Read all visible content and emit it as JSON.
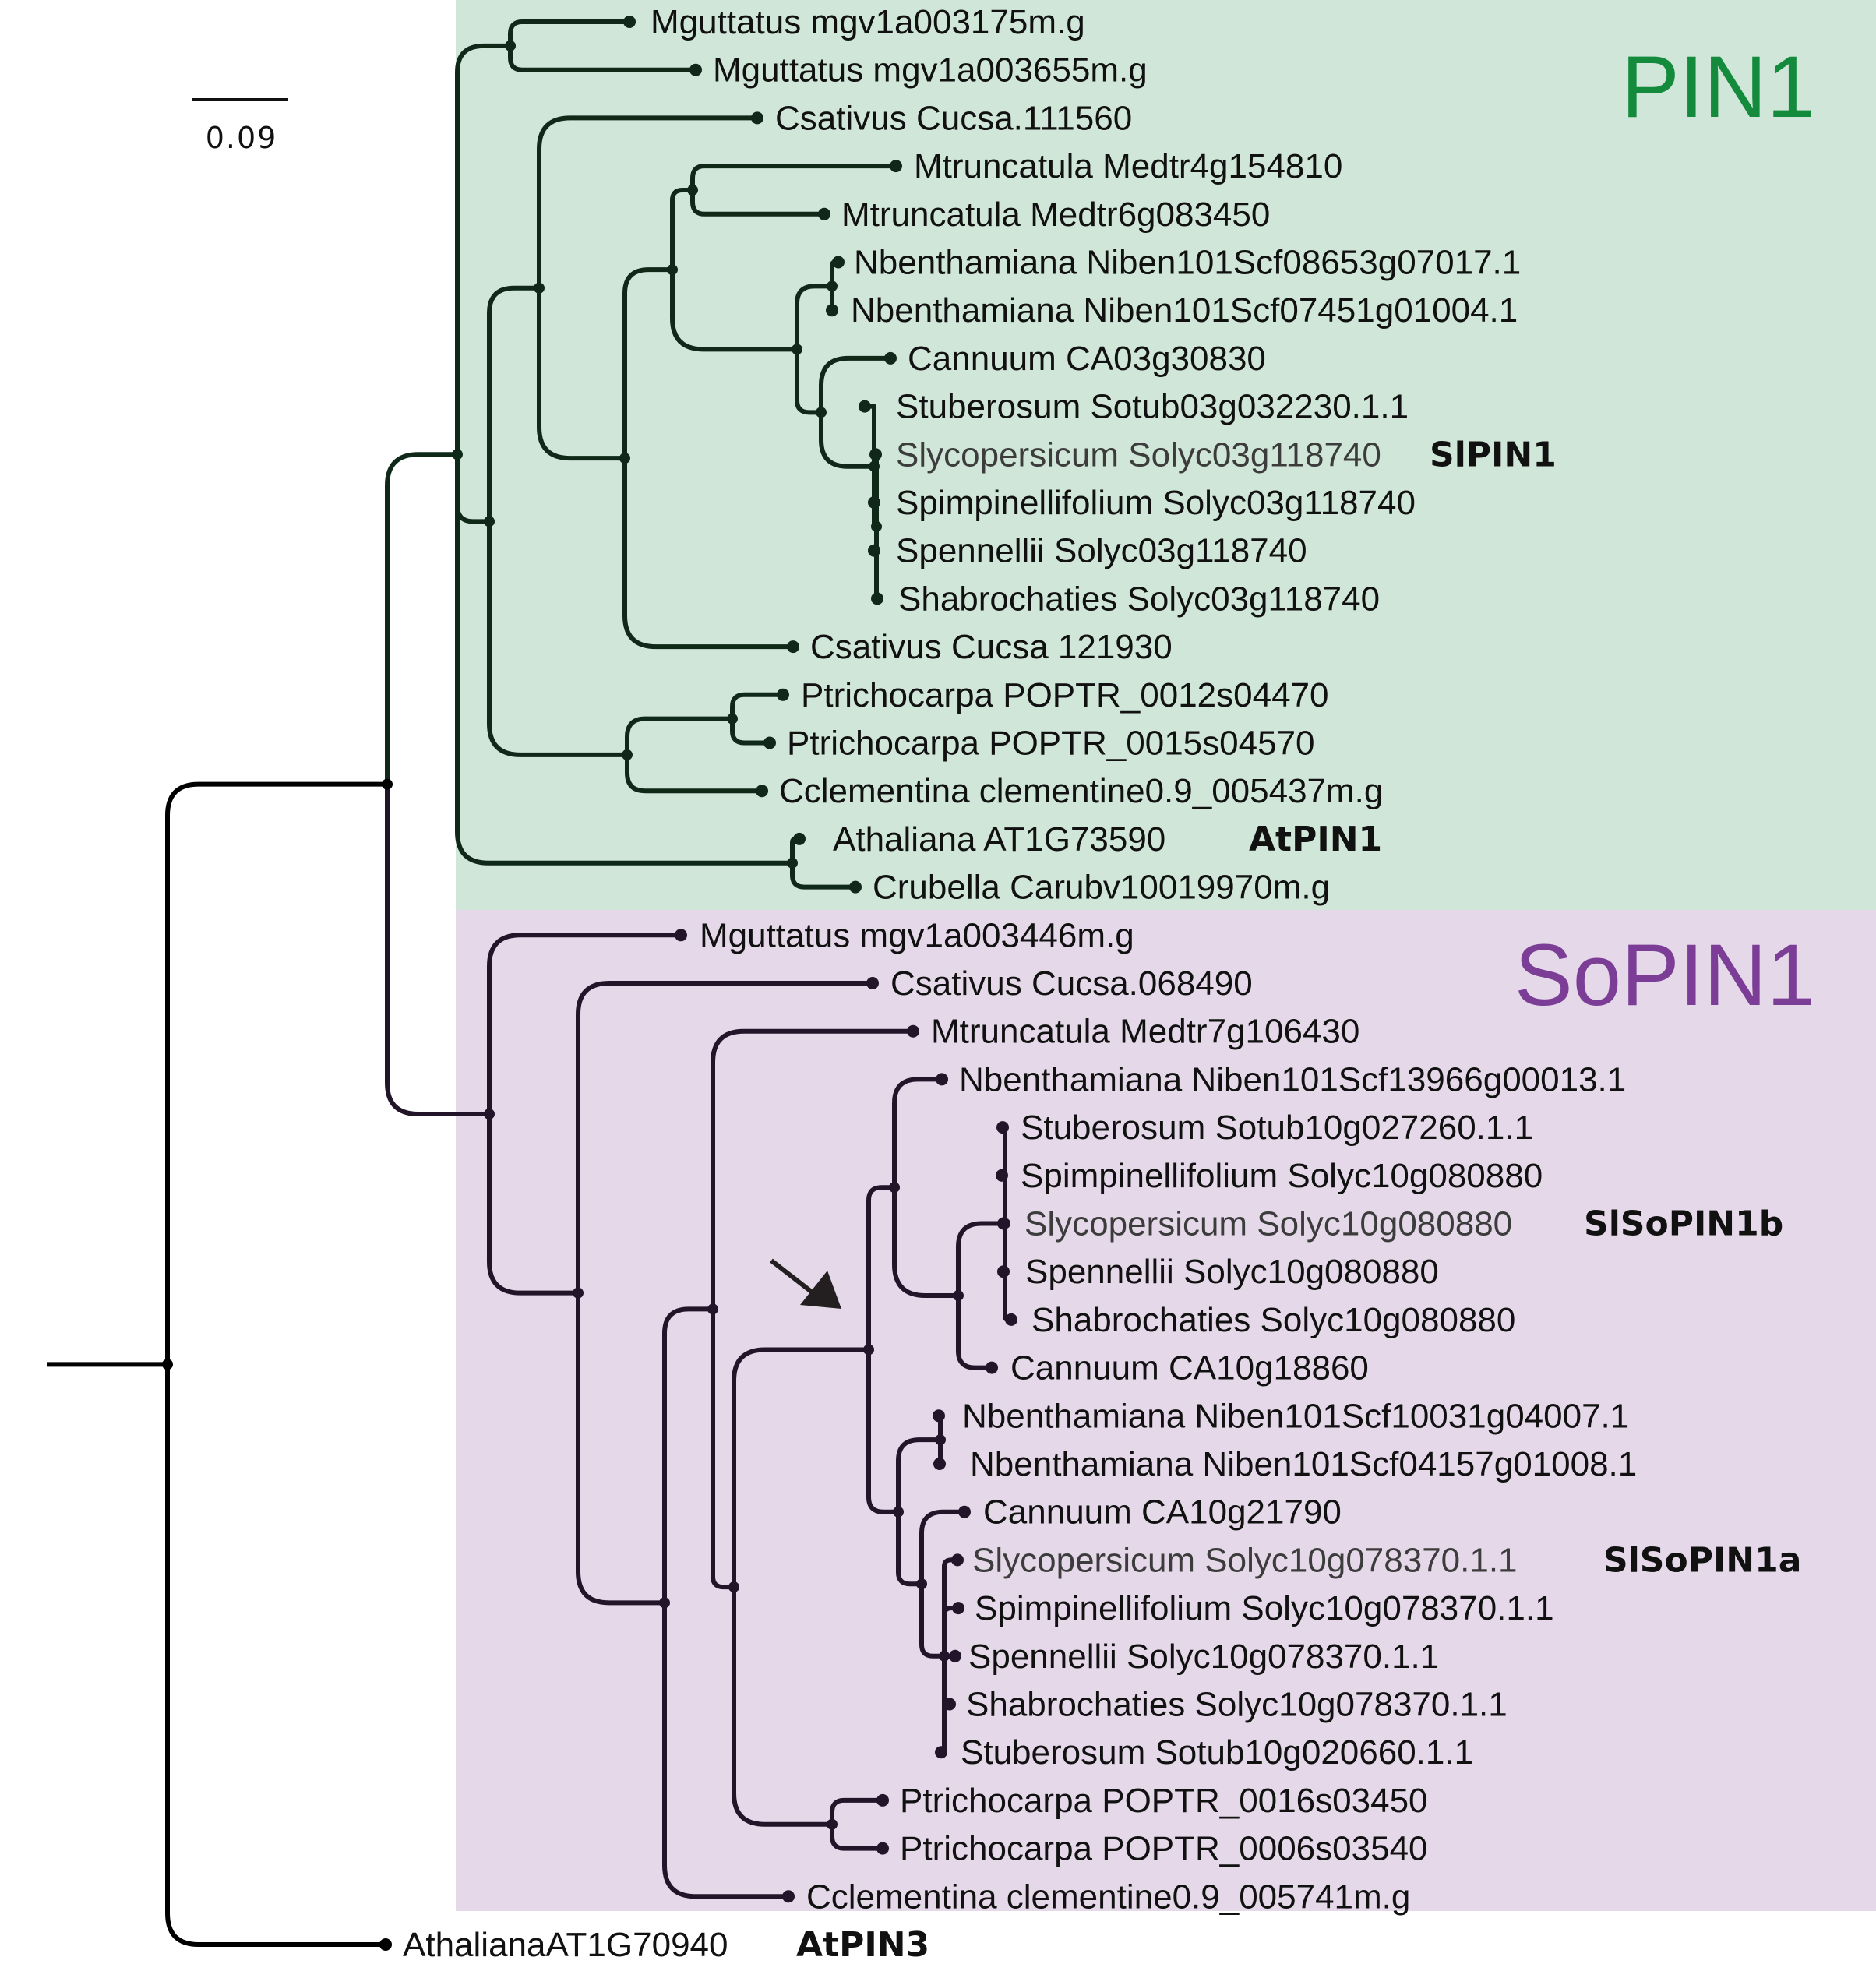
{
  "scale_bar": {
    "label": "0.09"
  },
  "clades": [
    {
      "id": "pin1",
      "title": "PIN1",
      "color": "#138a3c",
      "background": "#cfe6d8"
    },
    {
      "id": "sopin1",
      "title": "SoPIN1",
      "color": "#7b3d96",
      "background": "#e5d9e9"
    }
  ],
  "branch_colors": {
    "pin1": "#0f2818",
    "sopin1": "#22152a",
    "root": "#000000"
  },
  "annotations": {
    "arrow": "arrow pointing to SoPIN1 duplication node"
  },
  "leaves": [
    {
      "text": "Mguttatus mgv1a003175m.g"
    },
    {
      "text": "Mguttatus mgv1a003655m.g"
    },
    {
      "text": "Csativus Cucsa.111560"
    },
    {
      "text": "Mtruncatula Medtr4g154810"
    },
    {
      "text": "Mtruncatula Medtr6g083450"
    },
    {
      "text": "Nbenthamiana Niben101Scf08653g07017.1"
    },
    {
      "text": "Nbenthamiana Niben101Scf07451g01004.1"
    },
    {
      "text": "Cannuum CA03g30830"
    },
    {
      "text": "Stuberosum Sotub03g032230.1.1"
    },
    {
      "text": "Slycopersicum Solyc03g118740",
      "tag": "SlPIN1",
      "grey": true
    },
    {
      "text": "Spimpinellifolium Solyc03g118740"
    },
    {
      "text": "Spennellii Solyc03g118740"
    },
    {
      "text": "Shabrochaties Solyc03g118740"
    },
    {
      "text": "Csativus Cucsa 121930"
    },
    {
      "text": "Ptrichocarpa POPTR_0012s04470"
    },
    {
      "text": "Ptrichocarpa POPTR_0015s04570"
    },
    {
      "text": "Cclementina clementine0.9_005437m.g"
    },
    {
      "text": "Athaliana  AT1G73590",
      "tag": "AtPIN1"
    },
    {
      "text": "Crubella Carubv10019970m.g"
    },
    {
      "text": "Mguttatus mgv1a003446m.g"
    },
    {
      "text": "Csativus Cucsa.068490"
    },
    {
      "text": "Mtruncatula Medtr7g106430"
    },
    {
      "text": "Nbenthamiana Niben101Scf13966g00013.1"
    },
    {
      "text": "Stuberosum Sotub10g027260.1.1"
    },
    {
      "text": "Spimpinellifolium Solyc10g080880"
    },
    {
      "text": "Slycopersicum Solyc10g080880",
      "tag": "SlSoPIN1b",
      "grey": true
    },
    {
      "text": "Spennellii Solyc10g080880"
    },
    {
      "text": "Shabrochaties Solyc10g080880"
    },
    {
      "text": "Cannuum CA10g18860"
    },
    {
      "text": "Nbenthamiana Niben101Scf10031g04007.1"
    },
    {
      "text": "Nbenthamiana Niben101Scf04157g01008.1"
    },
    {
      "text": "Cannuum CA10g21790"
    },
    {
      "text": "Slycopersicum Solyc10g078370.1.1",
      "tag": "SlSoPIN1a",
      "grey": true
    },
    {
      "text": "Spimpinellifolium Solyc10g078370.1.1"
    },
    {
      "text": "Spennellii Solyc10g078370.1.1"
    },
    {
      "text": "Shabrochaties Solyc10g078370.1.1"
    },
    {
      "text": "Stuberosum Sotub10g020660.1.1"
    },
    {
      "text": "Ptrichocarpa POPTR_0016s03450"
    },
    {
      "text": "Ptrichocarpa POPTR_0006s03540"
    },
    {
      "text": "Cclementina clementine0.9_005741m.g"
    },
    {
      "text": "AthalianaAT1G70940",
      "tag": "AtPIN3"
    }
  ]
}
